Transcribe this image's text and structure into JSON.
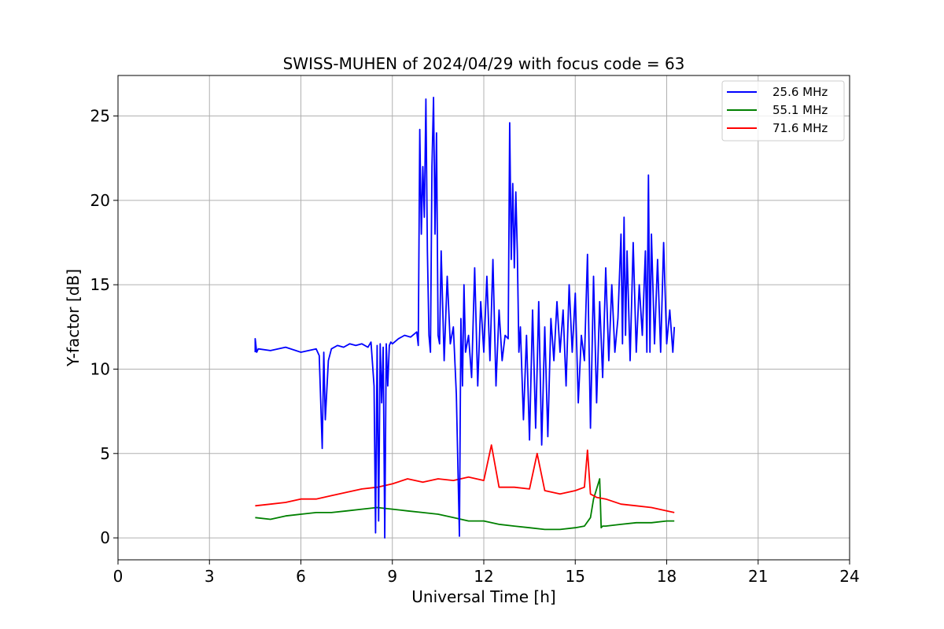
{
  "chart_data": {
    "type": "line",
    "title": "SWISS-MUHEN of 2024/04/29 with focus code = 63",
    "xlabel": "Universal Time [h]",
    "ylabel": "Y-factor [dB]",
    "xlim": [
      0,
      24
    ],
    "ylim": [
      -1.3,
      27.4
    ],
    "xticks": [
      0,
      3,
      6,
      9,
      12,
      15,
      18,
      21,
      24
    ],
    "yticks": [
      0,
      5,
      10,
      15,
      20,
      25
    ],
    "grid": true,
    "legend_position": "top-right",
    "series": [
      {
        "name": "25.6 MHz",
        "color": "#0000ff",
        "x": [
          4.5,
          4.5,
          4.55,
          4.6,
          5.0,
          5.5,
          6.0,
          6.5,
          6.6,
          6.7,
          6.75,
          6.8,
          6.9,
          7.0,
          7.2,
          7.4,
          7.6,
          7.8,
          8.0,
          8.2,
          8.3,
          8.4,
          8.45,
          8.5,
          8.55,
          8.6,
          8.65,
          8.7,
          8.75,
          8.8,
          8.85,
          8.9,
          8.95,
          9.0,
          9.2,
          9.4,
          9.6,
          9.8,
          9.85,
          9.9,
          9.95,
          10.0,
          10.05,
          10.1,
          10.15,
          10.2,
          10.25,
          10.3,
          10.35,
          10.4,
          10.45,
          10.5,
          10.55,
          10.6,
          10.7,
          10.8,
          10.9,
          11.0,
          11.1,
          11.2,
          11.25,
          11.3,
          11.35,
          11.4,
          11.5,
          11.6,
          11.7,
          11.8,
          11.9,
          12.0,
          12.1,
          12.2,
          12.3,
          12.4,
          12.5,
          12.6,
          12.7,
          12.8,
          12.85,
          12.9,
          12.95,
          13.0,
          13.05,
          13.1,
          13.15,
          13.2,
          13.3,
          13.4,
          13.5,
          13.6,
          13.7,
          13.75,
          13.8,
          13.9,
          14.0,
          14.1,
          14.2,
          14.3,
          14.4,
          14.5,
          14.6,
          14.7,
          14.8,
          14.9,
          15.0,
          15.1,
          15.2,
          15.3,
          15.4,
          15.5,
          15.55,
          15.6,
          15.7,
          15.8,
          15.9,
          16.0,
          16.1,
          16.2,
          16.3,
          16.4,
          16.5,
          16.55,
          16.6,
          16.65,
          16.7,
          16.8,
          16.9,
          17.0,
          17.1,
          17.2,
          17.3,
          17.35,
          17.4,
          17.45,
          17.5,
          17.6,
          17.7,
          17.8,
          17.9,
          18.0,
          18.1,
          18.2,
          18.25
        ],
        "y": [
          11.0,
          11.8,
          11.0,
          11.2,
          11.1,
          11.3,
          11.0,
          11.2,
          10.8,
          5.3,
          11.0,
          7.0,
          10.5,
          11.2,
          11.4,
          11.3,
          11.5,
          11.4,
          11.5,
          11.3,
          11.6,
          9.0,
          0.3,
          11.4,
          1.0,
          11.5,
          8.0,
          11.3,
          0.0,
          11.5,
          9.0,
          11.4,
          11.6,
          11.5,
          11.8,
          12.0,
          11.9,
          12.2,
          11.4,
          24.2,
          18.0,
          22.0,
          19.0,
          26.0,
          17.0,
          12.0,
          11.0,
          22.0,
          26.1,
          18.0,
          24.0,
          12.0,
          11.5,
          17.0,
          10.5,
          15.5,
          11.5,
          12.5,
          8.5,
          0.1,
          13.0,
          9.0,
          15.0,
          11.0,
          12.0,
          9.5,
          16.0,
          9.0,
          14.0,
          11.0,
          15.5,
          10.5,
          16.5,
          9.0,
          13.5,
          10.5,
          12.0,
          11.8,
          24.6,
          16.5,
          21.0,
          16.0,
          20.5,
          17.0,
          11.0,
          12.5,
          7.0,
          12.0,
          5.8,
          13.5,
          6.5,
          10.0,
          14.0,
          5.5,
          12.5,
          6.0,
          13.0,
          10.5,
          14.0,
          11.0,
          13.5,
          9.0,
          15.0,
          11.0,
          14.5,
          8.0,
          12.0,
          10.5,
          16.8,
          6.5,
          11.0,
          15.5,
          8.0,
          14.0,
          9.5,
          16.0,
          10.5,
          15.0,
          11.0,
          13.0,
          18.0,
          11.5,
          19.0,
          12.0,
          17.0,
          10.5,
          17.5,
          11.0,
          15.0,
          12.0,
          17.0,
          11.0,
          21.5,
          11.0,
          18.0,
          11.5,
          16.5,
          11.0,
          17.5,
          11.5,
          13.5,
          11.0,
          12.5
        ]
      },
      {
        "name": "55.1 MHz",
        "color": "#008000",
        "x": [
          4.5,
          5.0,
          5.5,
          6.0,
          6.5,
          7.0,
          7.5,
          8.0,
          8.5,
          9.0,
          9.5,
          10.0,
          10.5,
          11.0,
          11.5,
          12.0,
          12.5,
          13.0,
          13.5,
          14.0,
          14.5,
          15.0,
          15.3,
          15.5,
          15.6,
          15.8,
          15.85,
          15.9,
          16.0,
          16.5,
          17.0,
          17.5,
          18.0,
          18.25
        ],
        "y": [
          1.2,
          1.1,
          1.3,
          1.4,
          1.5,
          1.5,
          1.6,
          1.7,
          1.8,
          1.7,
          1.6,
          1.5,
          1.4,
          1.2,
          1.0,
          1.0,
          0.8,
          0.7,
          0.6,
          0.5,
          0.5,
          0.6,
          0.7,
          1.2,
          2.3,
          3.5,
          0.6,
          0.7,
          0.7,
          0.8,
          0.9,
          0.9,
          1.0,
          1.0
        ]
      },
      {
        "name": "71.6 MHz",
        "color": "#ff0000",
        "x": [
          4.5,
          5.0,
          5.5,
          6.0,
          6.5,
          7.0,
          7.5,
          8.0,
          8.5,
          9.0,
          9.5,
          10.0,
          10.5,
          11.0,
          11.5,
          12.0,
          12.25,
          12.5,
          13.0,
          13.5,
          13.75,
          14.0,
          14.5,
          15.0,
          15.3,
          15.4,
          15.5,
          15.7,
          16.0,
          16.5,
          17.0,
          17.5,
          18.0,
          18.25
        ],
        "y": [
          1.9,
          2.0,
          2.1,
          2.3,
          2.3,
          2.5,
          2.7,
          2.9,
          3.0,
          3.2,
          3.5,
          3.3,
          3.5,
          3.4,
          3.6,
          3.4,
          5.5,
          3.0,
          3.0,
          2.9,
          5.0,
          2.8,
          2.6,
          2.8,
          3.0,
          5.2,
          2.6,
          2.4,
          2.3,
          2.0,
          1.9,
          1.8,
          1.6,
          1.5
        ]
      }
    ]
  }
}
